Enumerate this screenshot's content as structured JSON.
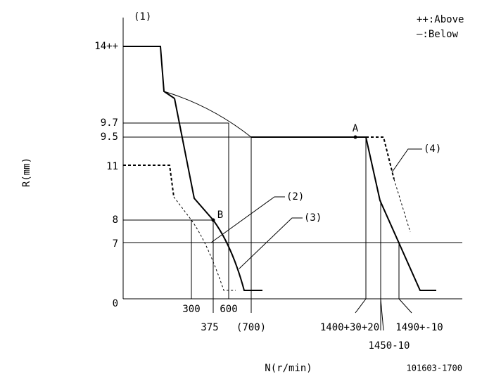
{
  "diagram": {
    "corner_label": "(1)",
    "legend": [
      "++:Above",
      "—:Below"
    ],
    "y_axis_title": "R(mm)",
    "x_axis_title": "N(r/min)",
    "y_labels": [
      "14++",
      "9.7",
      "9.5",
      "11",
      "8",
      "7",
      "0"
    ],
    "x_labels": [
      "300",
      "600",
      "375",
      "(700)",
      "1400+30+20",
      "1450-10",
      "1490+-10"
    ],
    "point_labels": [
      "A",
      "B"
    ],
    "curve_labels": [
      "(2)",
      "(3)",
      "(4)"
    ],
    "code": "101603-1700"
  }
}
